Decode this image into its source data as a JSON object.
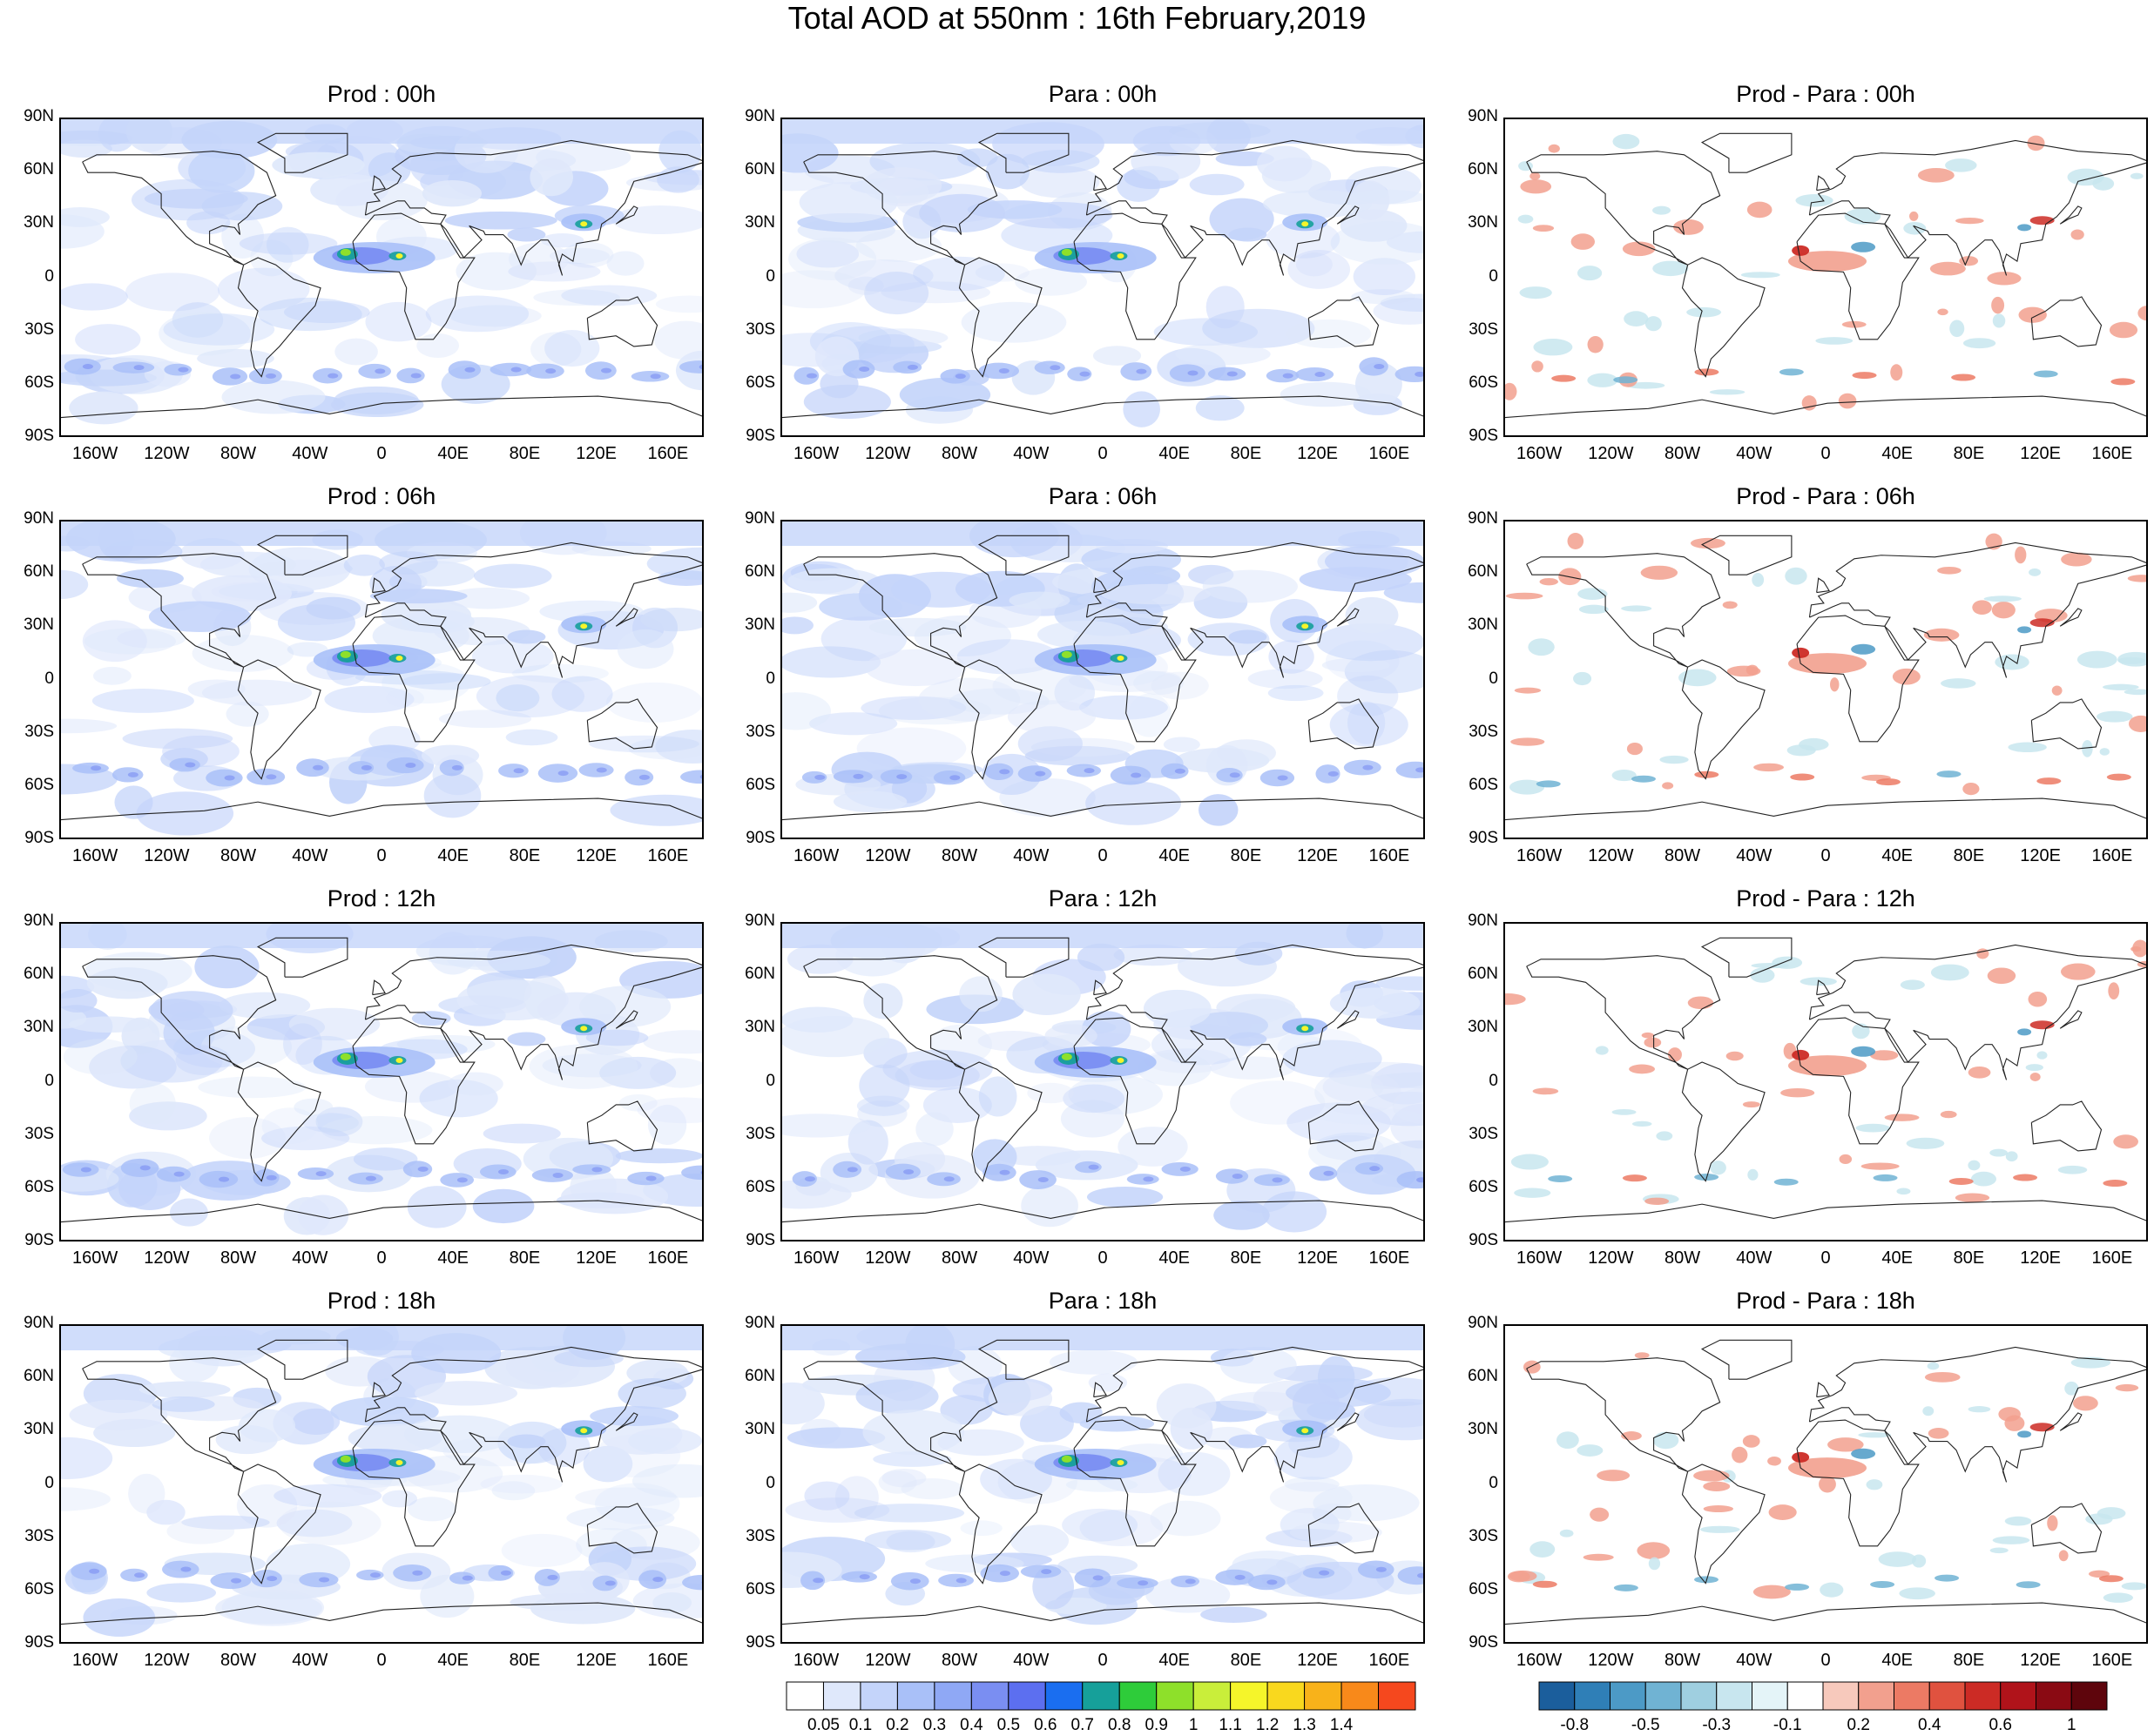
{
  "title": "Total AOD at 550nm : 16th February,2019",
  "lat_labels": [
    "90N",
    "60N",
    "30N",
    "0",
    "30S",
    "60S",
    "90S"
  ],
  "lon_labels": [
    "160W",
    "120W",
    "80W",
    "40W",
    "0",
    "40E",
    "80E",
    "120E",
    "160E"
  ],
  "panels": [
    {
      "title": "Prod : 00h",
      "kind": "aod",
      "tint": 0.55
    },
    {
      "title": "Para : 00h",
      "kind": "aod",
      "tint": 0.6
    },
    {
      "title": "Prod - Para : 00h",
      "kind": "diff"
    },
    {
      "title": "Prod : 06h",
      "kind": "aod",
      "tint": 0.55
    },
    {
      "title": "Para : 06h",
      "kind": "aod",
      "tint": 0.6
    },
    {
      "title": "Prod - Para : 06h",
      "kind": "diff"
    },
    {
      "title": "Prod : 12h",
      "kind": "aod",
      "tint": 0.6
    },
    {
      "title": "Para : 12h",
      "kind": "aod",
      "tint": 0.6
    },
    {
      "title": "Prod - Para : 12h",
      "kind": "diff"
    },
    {
      "title": "Prod : 18h",
      "kind": "aod",
      "tint": 0.6
    },
    {
      "title": "Para : 18h",
      "kind": "aod",
      "tint": 0.6
    },
    {
      "title": "Prod - Para : 18h",
      "kind": "diff"
    }
  ],
  "aod_colorbar": {
    "labels": [
      "0.05",
      "0.1",
      "0.2",
      "0.3",
      "0.4",
      "0.5",
      "0.6",
      "0.7",
      "0.8",
      "0.9",
      "1",
      "1.1",
      "1.2",
      "1.3",
      "1.4"
    ],
    "colors": [
      "#ffffff",
      "#dfe8fb",
      "#c4d4fa",
      "#a9c0f8",
      "#8fa8f5",
      "#7a8ef2",
      "#5c6ff0",
      "#1a6ef0",
      "#16a09a",
      "#2ecc3a",
      "#8ee02a",
      "#c9ee3a",
      "#f5f52a",
      "#f9d81e",
      "#f8b21a",
      "#f8891a",
      "#f5481e"
    ]
  },
  "diff_colorbar": {
    "labels": [
      "-0.8",
      "-0.5",
      "-0.3",
      "-0.1",
      "0.2",
      "0.4",
      "0.6",
      "1"
    ],
    "colors": [
      "#1b5e9c",
      "#2f7fb7",
      "#4c9ac6",
      "#70b3d3",
      "#9fcfe0",
      "#c8e6ef",
      "#e4f4f8",
      "#ffffff",
      "#f7c9bc",
      "#f2a08e",
      "#ec7a64",
      "#e0523f",
      "#cc2b25",
      "#b0131a",
      "#8a0a13",
      "#5e050c"
    ]
  }
}
